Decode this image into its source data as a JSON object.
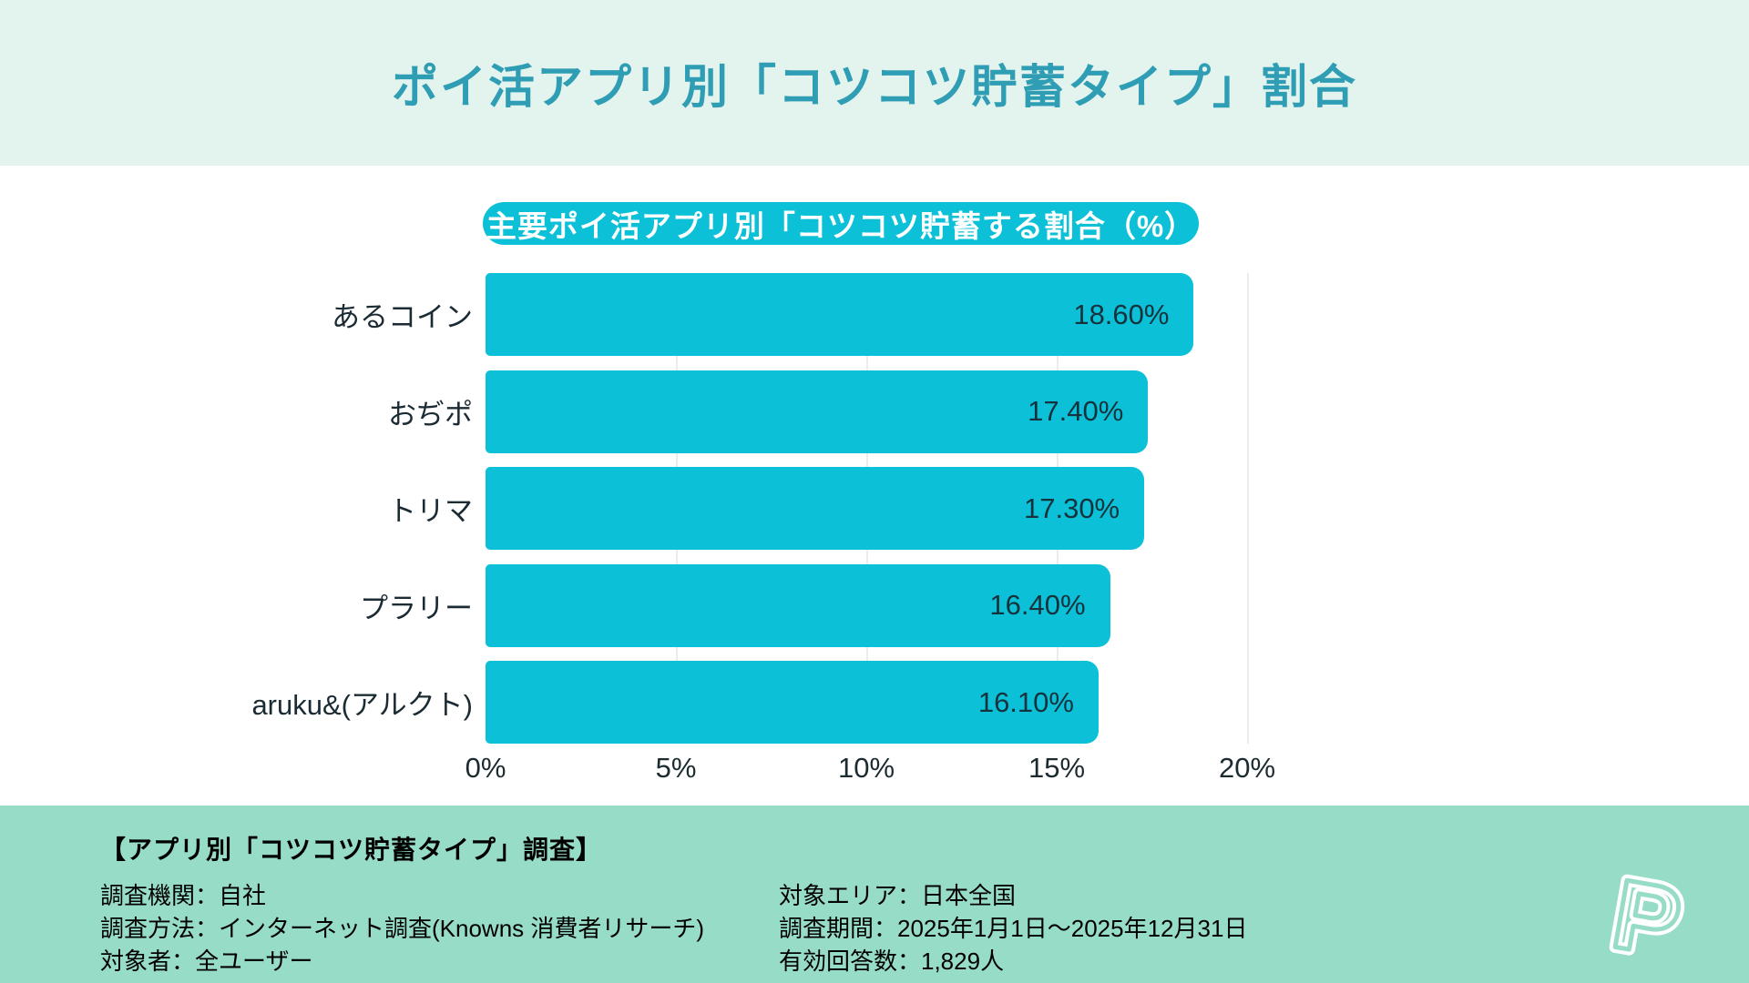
{
  "page": {
    "title": "ポイ活アプリ別「コツコツ貯蓄タイプ」割合"
  },
  "chart_data": {
    "type": "bar",
    "orientation": "horizontal",
    "title": "主要ポイ活アプリ別「コツコツ貯蓄する割合（%）",
    "categories": [
      "あるコイン",
      "おぢポ",
      "トリマ",
      "プラリー",
      "aruku&(アルクト)"
    ],
    "values": [
      18.6,
      17.4,
      17.3,
      16.4,
      16.1
    ],
    "value_labels": [
      "18.60%",
      "17.40%",
      "17.30%",
      "16.40%",
      "16.10%"
    ],
    "xlabel": "",
    "ylabel": "",
    "xlim": [
      0,
      20
    ],
    "x_ticks": [
      "0%",
      "5%",
      "10%",
      "15%",
      "20%"
    ],
    "x_tick_values": [
      0,
      5,
      10,
      15,
      20
    ],
    "grid": true,
    "legend": false,
    "bar_color": "#0cc1d7"
  },
  "footer": {
    "heading": "【アプリ別「コツコツ貯蓄タイプ」調査】",
    "left_lines": [
      "調査機関：自社",
      "調査方法：インターネット調査(Knowns 消費者リサーチ)",
      "対象者：全ユーザー"
    ],
    "right_lines": [
      "対象エリア：日本全国",
      "調査期間：2025年1月1日～2025年12月31日",
      "有効回答数：1,829人"
    ],
    "logo_letter": "P"
  },
  "colors": {
    "header_bg": "#e3f4ef",
    "title_text": "#2f9db4",
    "accent_cyan": "#0cc1d7",
    "dark_text": "#15323d",
    "gridline": "#e9edee",
    "footer_bg": "#97dcc7",
    "logo_stroke": "#ffffff"
  }
}
